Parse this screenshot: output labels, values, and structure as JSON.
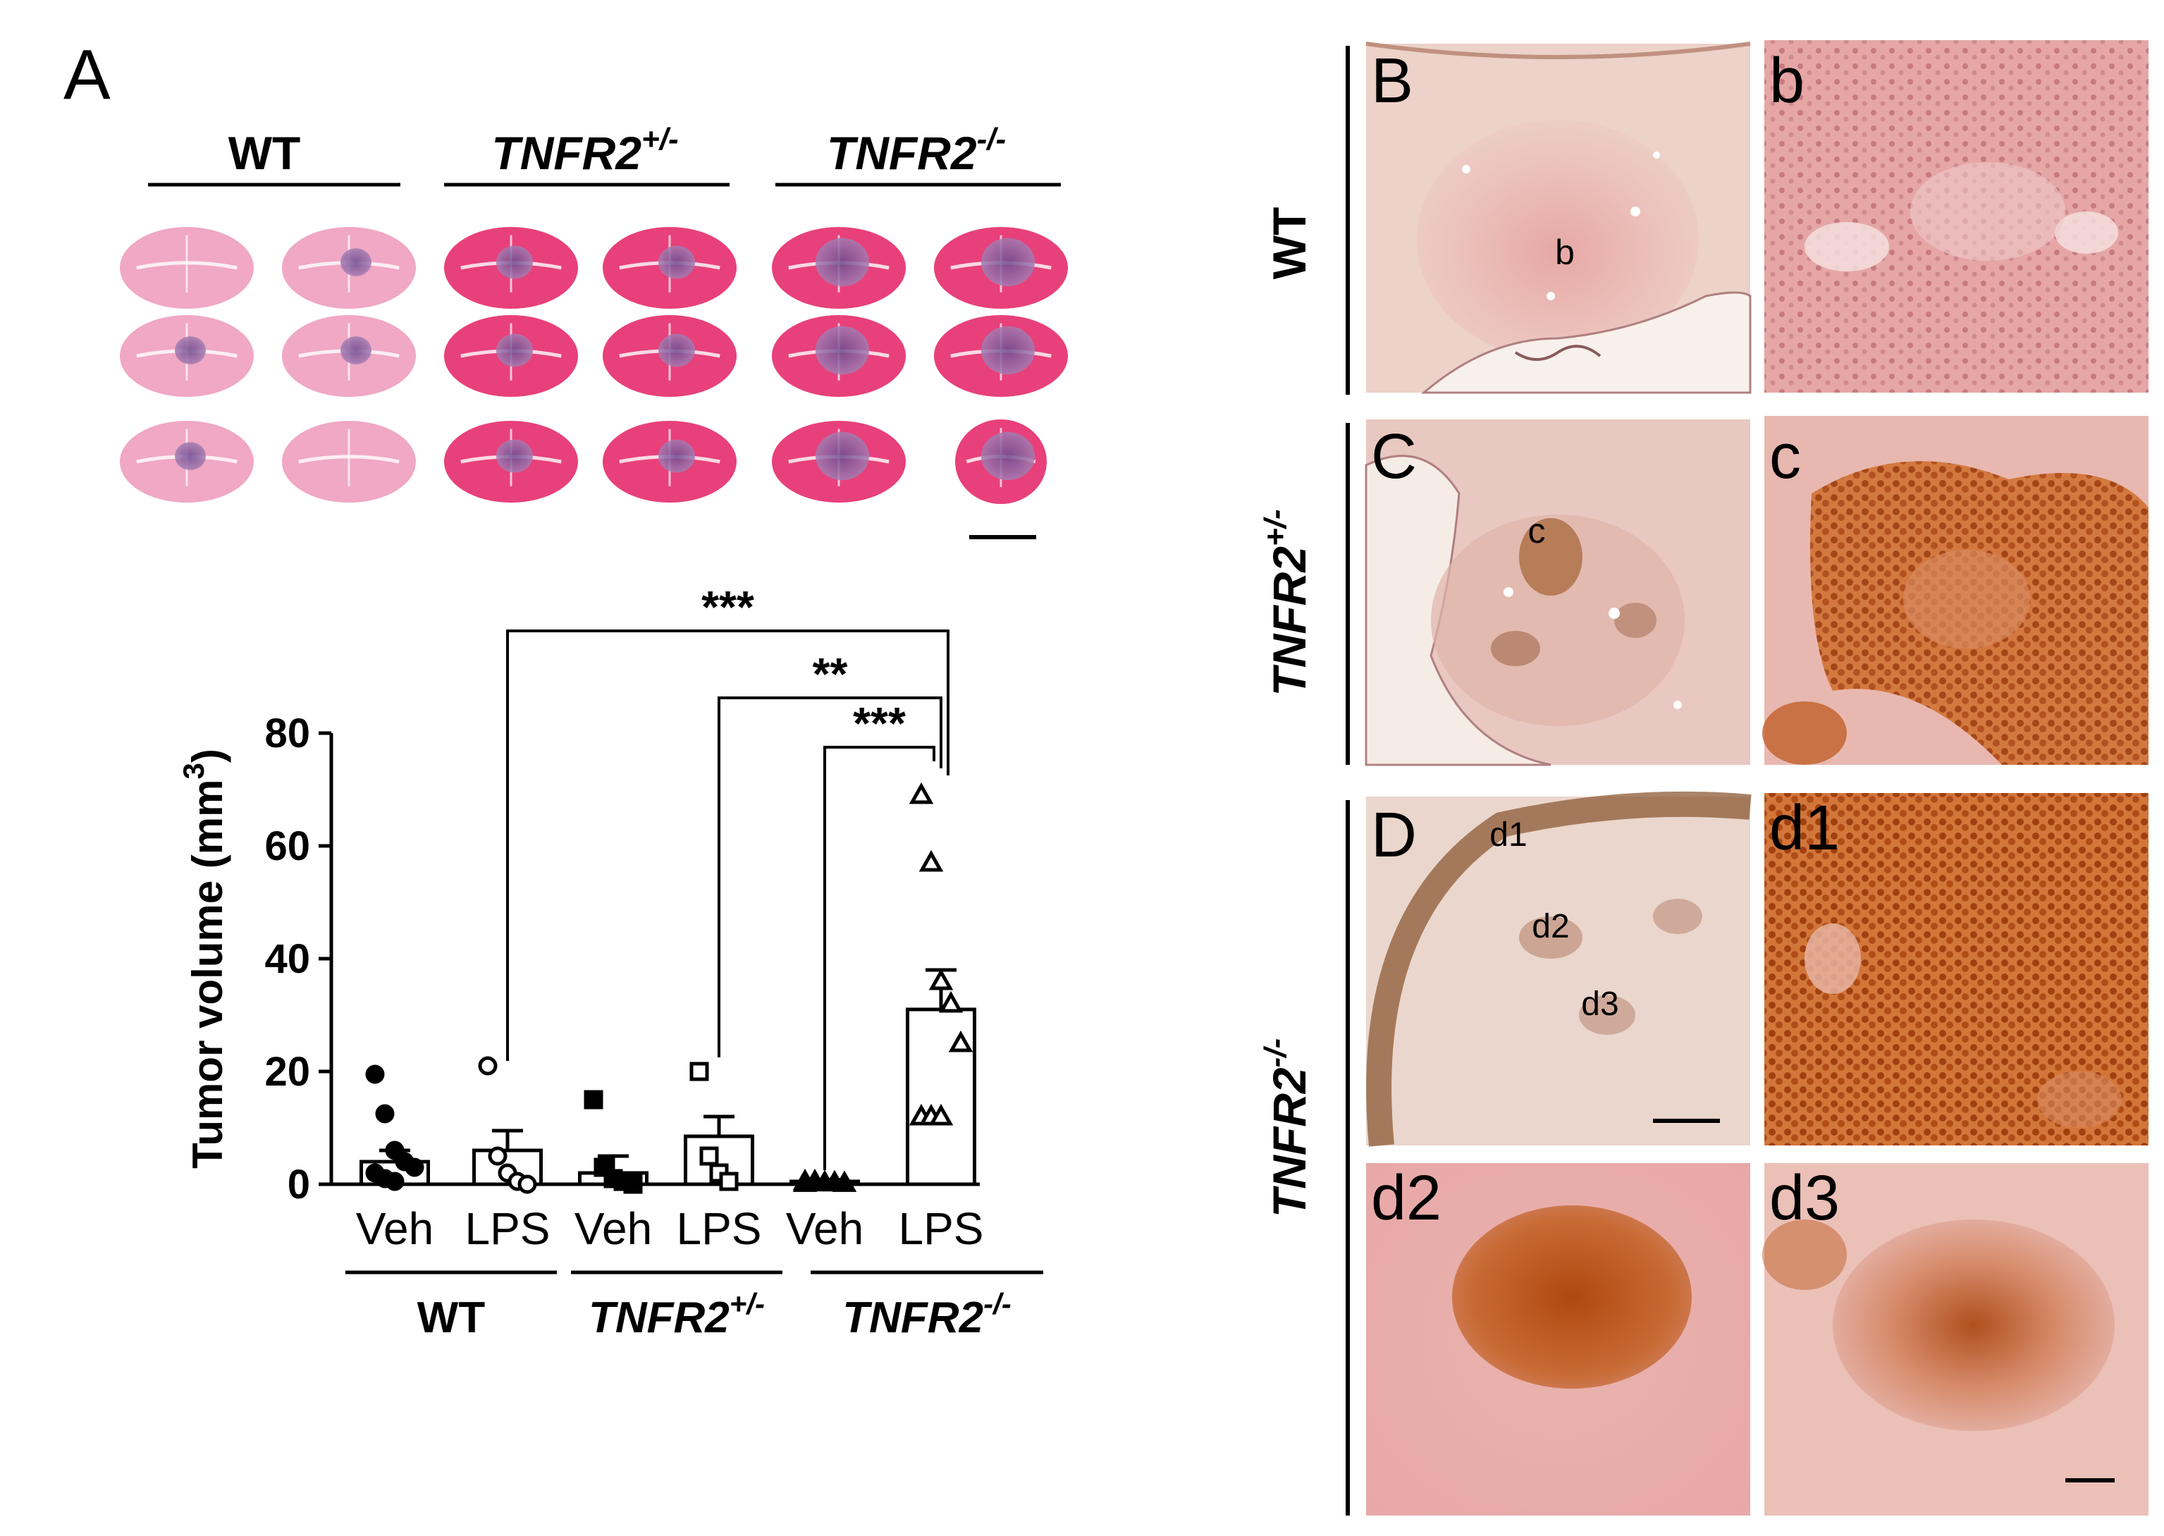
{
  "panel_labels": {
    "A": "A",
    "B": "B",
    "b": "b",
    "C": "C",
    "c": "c",
    "D": "D",
    "d1": "d1",
    "d2": "d2",
    "d3": "d3"
  },
  "section_headers": [
    {
      "base": "WT",
      "sup": ""
    },
    {
      "base": "TNFR2",
      "sup": "+/-"
    },
    {
      "base": "TNFR2",
      "sup": "-/-"
    }
  ],
  "row_labels": [
    {
      "base": "WT",
      "sup": ""
    },
    {
      "base": "TNFR2",
      "sup": "+/-"
    },
    {
      "base": "TNFR2",
      "sup": "-/-"
    }
  ],
  "micrograph_annotations": {
    "B_center": "b",
    "C_center": "c",
    "D_regions": [
      "d1",
      "d2",
      "d3"
    ]
  },
  "colors": {
    "he_pink": "#f0a8c4",
    "he_magenta": "#e8407a",
    "tumor_purple": "#8a5a9c",
    "ihc_background": "#e8b8b0",
    "ihc_brown": "#b85a20"
  },
  "chart_data": {
    "type": "bar",
    "ylabel": "Tumor volume (mm",
    "ylabel_sup": "3",
    "ylim": [
      0,
      80
    ],
    "yticks": [
      0,
      20,
      40,
      60,
      80
    ],
    "categories": [
      "Veh",
      "LPS",
      "Veh",
      "LPS",
      "Veh",
      "LPS"
    ],
    "groups": [
      {
        "base": "WT",
        "sup": ""
      },
      {
        "base": "TNFR2",
        "sup": "+/-"
      },
      {
        "base": "TNFR2",
        "sup": "-/-"
      }
    ],
    "values": [
      4,
      6,
      2,
      8.5,
      0.5,
      31
    ],
    "errors": [
      2,
      3.5,
      3,
      3.5,
      0.3,
      7
    ],
    "markers": [
      "filled-circle",
      "open-circle",
      "filled-square",
      "open-square",
      "filled-triangle",
      "open-triangle"
    ],
    "points": [
      [
        19.5,
        12.5,
        6,
        4,
        3,
        2,
        1,
        0.5
      ],
      [
        21,
        5,
        2,
        0.5,
        0
      ],
      [
        15,
        3,
        1,
        0.5,
        0
      ],
      [
        20,
        5,
        2,
        0.5
      ],
      [
        0.5,
        0.5,
        0.3,
        0.3,
        0.2,
        0.2
      ],
      [
        69,
        57,
        36,
        32,
        25,
        12,
        12,
        12
      ]
    ],
    "significance": [
      {
        "from": 1,
        "to": 5,
        "label": "***"
      },
      {
        "from": 3,
        "to": 5,
        "label": "**"
      },
      {
        "from": 4,
        "to": 5,
        "label": "***"
      }
    ]
  }
}
